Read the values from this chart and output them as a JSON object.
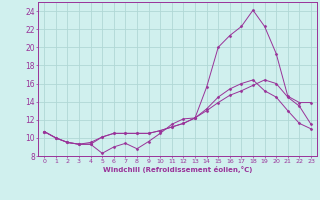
{
  "xlabel": "Windchill (Refroidissement éolien,°C)",
  "xlim": [
    -0.5,
    23.5
  ],
  "ylim": [
    8,
    25
  ],
  "xticks": [
    0,
    1,
    2,
    3,
    4,
    5,
    6,
    7,
    8,
    9,
    10,
    11,
    12,
    13,
    14,
    15,
    16,
    17,
    18,
    19,
    20,
    21,
    22,
    23
  ],
  "yticks": [
    8,
    10,
    12,
    14,
    16,
    18,
    20,
    22,
    24
  ],
  "background_color": "#d0f0ee",
  "grid_color": "#b0d8d5",
  "line_color": "#993399",
  "lines": [
    {
      "x": [
        0,
        1,
        2,
        3,
        4,
        5,
        6,
        7,
        8,
        9,
        10,
        11,
        12,
        13,
        14,
        15,
        16,
        17,
        18,
        19,
        20,
        21,
        22,
        23
      ],
      "y": [
        10.7,
        10.0,
        9.5,
        9.3,
        9.3,
        8.3,
        9.0,
        9.4,
        8.8,
        9.6,
        10.5,
        11.5,
        12.1,
        12.2,
        15.6,
        20.0,
        21.3,
        22.3,
        24.1,
        22.3,
        19.3,
        14.6,
        13.9,
        13.9
      ]
    },
    {
      "x": [
        0,
        1,
        2,
        3,
        4,
        5,
        6,
        7,
        8,
        9,
        10,
        11,
        12,
        13,
        14,
        15,
        16,
        17,
        18,
        19,
        20,
        21,
        22,
        23
      ],
      "y": [
        10.7,
        10.0,
        9.5,
        9.3,
        9.3,
        10.1,
        10.5,
        10.5,
        10.5,
        10.5,
        10.8,
        11.2,
        11.6,
        12.2,
        13.2,
        14.5,
        15.4,
        16.0,
        16.4,
        15.2,
        14.5,
        13.0,
        11.6,
        11.0
      ]
    },
    {
      "x": [
        0,
        1,
        2,
        3,
        4,
        5,
        6,
        7,
        8,
        9,
        10,
        11,
        12,
        13,
        14,
        15,
        16,
        17,
        18,
        19,
        20,
        21,
        22,
        23
      ],
      "y": [
        10.7,
        10.0,
        9.5,
        9.3,
        9.5,
        10.1,
        10.5,
        10.5,
        10.5,
        10.5,
        10.8,
        11.2,
        11.6,
        12.2,
        13.0,
        13.9,
        14.7,
        15.2,
        15.8,
        16.4,
        16.0,
        14.5,
        13.5,
        11.5
      ]
    }
  ]
}
